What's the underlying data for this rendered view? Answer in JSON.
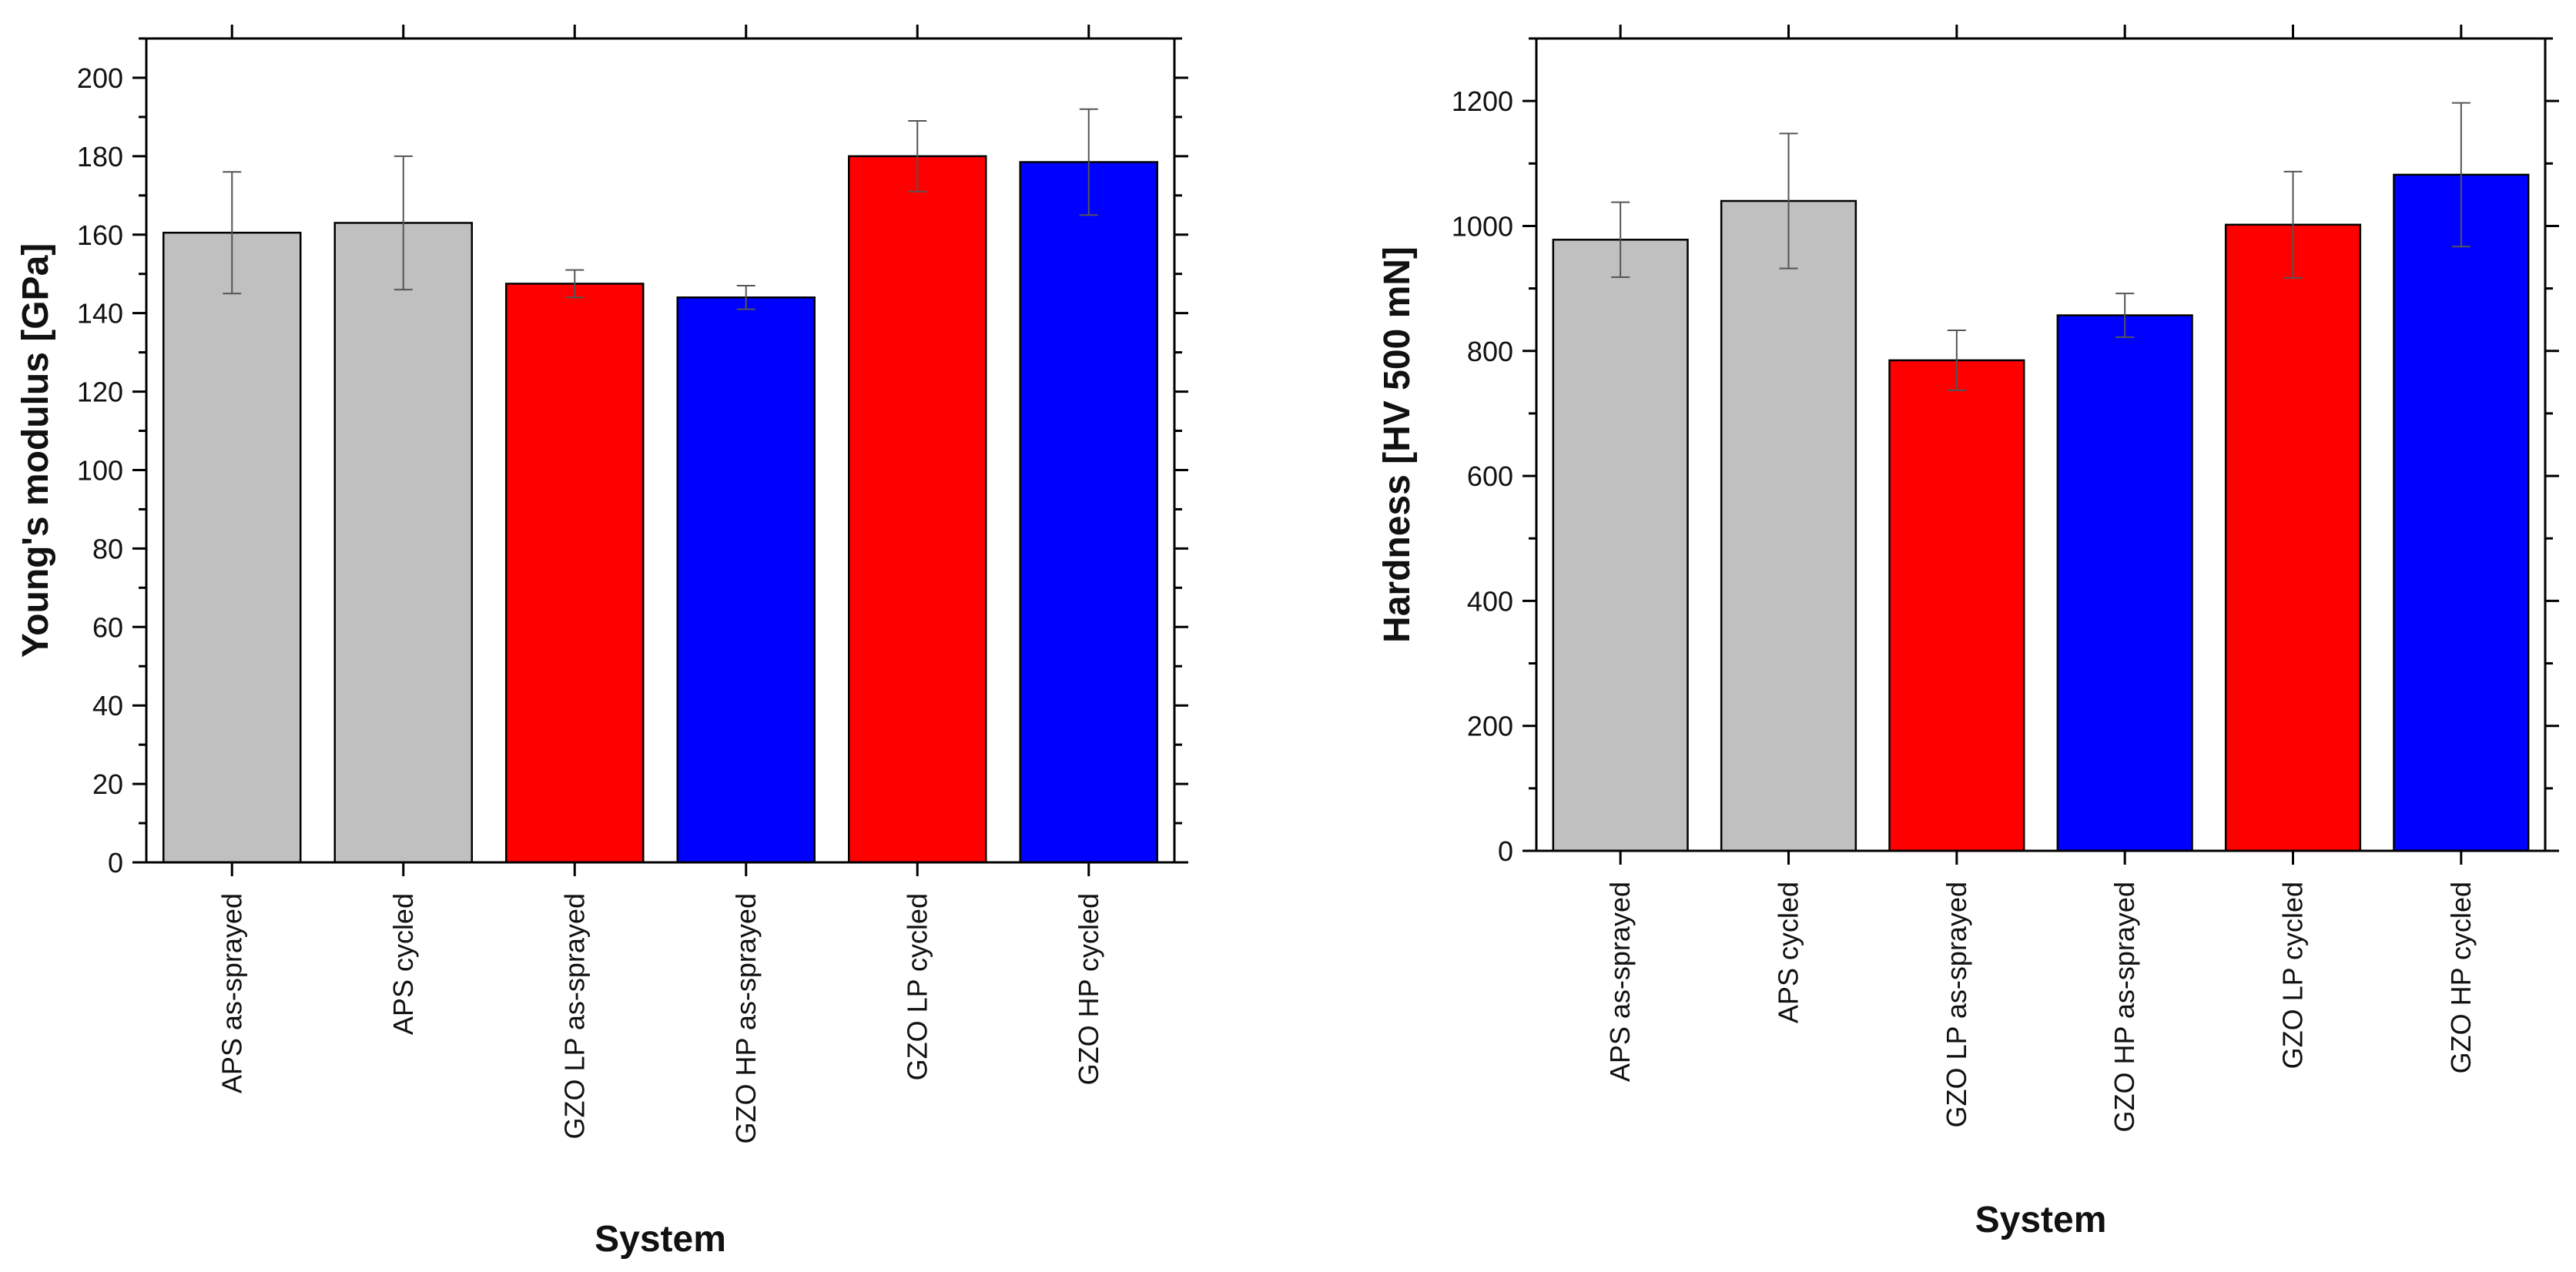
{
  "chart_data": [
    {
      "type": "bar",
      "title": "",
      "xlabel": "System",
      "ylabel": "Young's modulus [GPa]",
      "ylim": [
        0,
        210
      ],
      "yticks": [
        0,
        20,
        40,
        60,
        80,
        100,
        120,
        140,
        160,
        180,
        200
      ],
      "categories": [
        "APS as-sprayed",
        "APS cycled",
        "GZO LP as-sprayed",
        "GZO HP as-sprayed",
        "GZO LP cycled",
        "GZO HP cycled"
      ],
      "values": [
        160.5,
        163.0,
        147.5,
        144.0,
        180.0,
        178.5
      ],
      "errors": [
        15.5,
        17.0,
        3.5,
        3.0,
        9.0,
        13.5
      ],
      "colors": [
        "#c0c0c0",
        "#c0c0c0",
        "#ff0000",
        "#0000ff",
        "#ff0000",
        "#0000ff"
      ],
      "grid": false
    },
    {
      "type": "bar",
      "title": "",
      "xlabel": "System",
      "ylabel": "Hardness [HV 500 mN]",
      "ylim": [
        0,
        1300
      ],
      "yticks": [
        0,
        200,
        400,
        600,
        800,
        1000,
        1200
      ],
      "categories": [
        "APS as-sprayed",
        "APS cycled",
        "GZO LP as-sprayed",
        "GZO HP as-sprayed",
        "GZO LP cycled",
        "GZO HP cycled"
      ],
      "values": [
        978,
        1040,
        785,
        857,
        1002,
        1082
      ],
      "errors": [
        60,
        108,
        48,
        35,
        85,
        115
      ],
      "colors": [
        "#c0c0c0",
        "#c0c0c0",
        "#ff0000",
        "#0000ff",
        "#ff0000",
        "#0000ff"
      ],
      "grid": false
    }
  ]
}
